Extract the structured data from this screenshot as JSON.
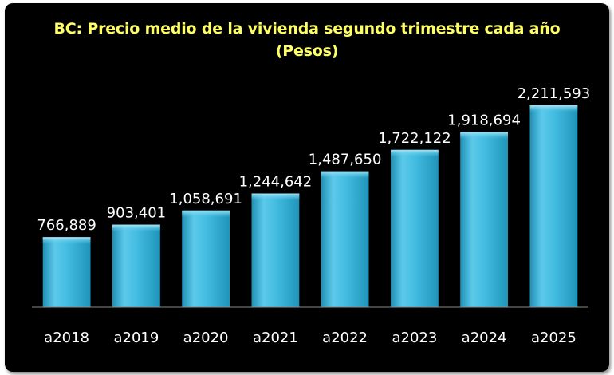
{
  "chart_data": {
    "type": "bar",
    "title": "BC: Precio medio de la vivienda segundo trimestre cada año",
    "subtitle": "(Pesos)",
    "categories": [
      "a2018",
      "a2019",
      "a2020",
      "a2021",
      "a2022",
      "a2023",
      "a2024",
      "a2025"
    ],
    "values": [
      766889,
      903401,
      1058691,
      1244642,
      1487650,
      1722122,
      1918694,
      2211593
    ],
    "data_labels": [
      "766,889",
      "903,401",
      "1,058,691",
      "1,244,642",
      "1,487,650",
      "1,722,122",
      "1,918,694",
      "2,211,593"
    ],
    "ylim": [
      0,
      2500000
    ],
    "grid": false,
    "legend": "none",
    "colors": {
      "background": "#000000",
      "bar": "#3fb8dd",
      "bar_light": "#7fd6f0",
      "bar_dark": "#1f8fb3",
      "title": "#ffff66",
      "text": "#ffffff",
      "axis": "#8a8a8a"
    }
  }
}
